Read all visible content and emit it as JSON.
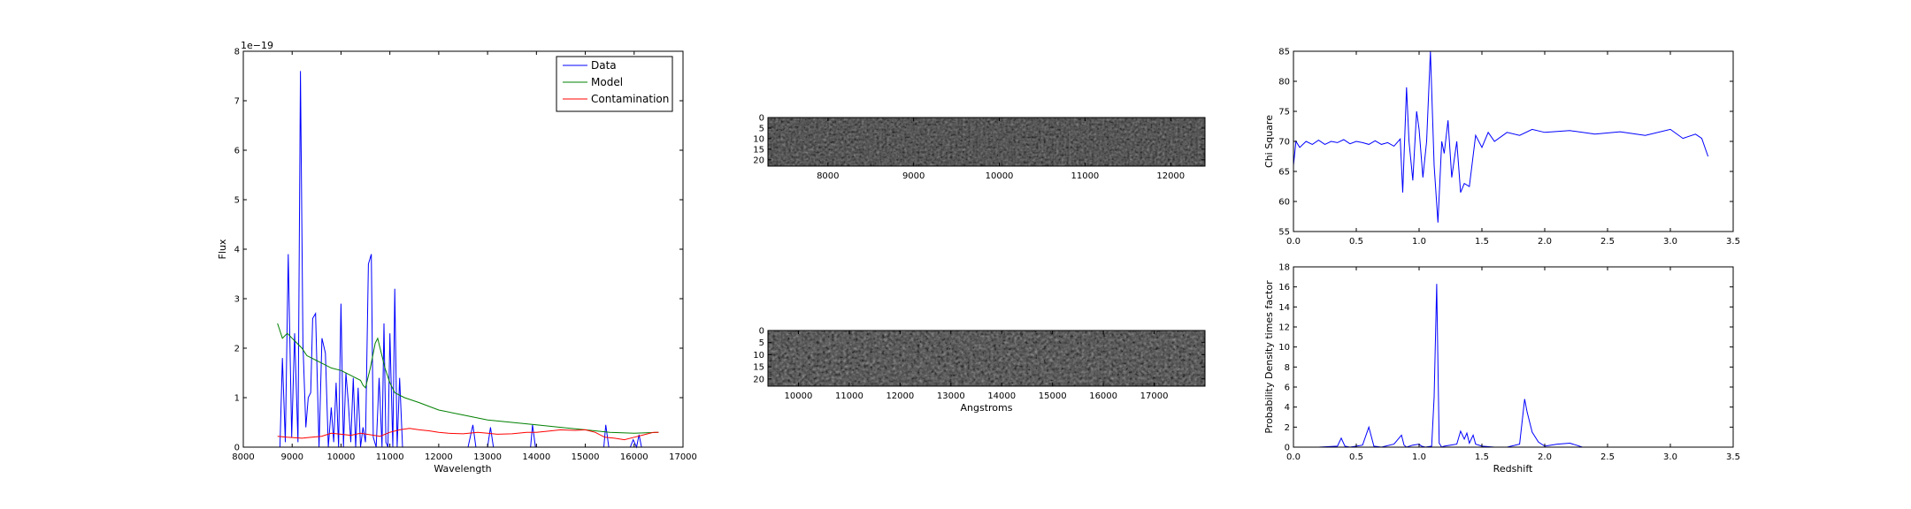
{
  "chart_data": [
    {
      "type": "line",
      "xlabel": "Wavelength",
      "ylabel": "Flux",
      "offset_label": "1e−19",
      "xlim": [
        8000,
        17000
      ],
      "ylim": [
        0,
        8
      ],
      "xticks": [
        8000,
        9000,
        10000,
        11000,
        12000,
        13000,
        14000,
        15000,
        16000,
        17000
      ],
      "yticks": [
        0,
        1,
        2,
        3,
        4,
        5,
        6,
        7,
        8
      ],
      "legend_position": "top-right",
      "series": [
        {
          "name": "Data",
          "color": "#0000ff",
          "x": [
            8750,
            8800,
            8860,
            8920,
            8990,
            9050,
            9120,
            9170,
            9220,
            9280,
            9330,
            9380,
            9420,
            9480,
            9550,
            9610,
            9680,
            9740,
            9800,
            9850,
            9900,
            9950,
            10000,
            10050,
            10100,
            10150,
            10200,
            10250,
            10300,
            10350,
            10400,
            10450,
            10500,
            10560,
            10620,
            10660,
            10720,
            10780,
            10840,
            10880,
            10920,
            10960,
            11000,
            11060,
            11100,
            11150,
            11200,
            11260,
            11320,
            11380,
            11440,
            11500,
            11600,
            11800,
            12000,
            12200,
            12400,
            12600,
            12700,
            12760,
            12820,
            12900,
            13000,
            13060,
            13120,
            13300,
            13500,
            13700,
            13800,
            13880,
            13920,
            13980,
            14100,
            14300,
            14500,
            14700,
            14900,
            15100,
            15300,
            15380,
            15420,
            15480,
            15600,
            15800,
            15920,
            15980,
            16050,
            16100,
            16150,
            16200,
            16300,
            16400,
            16500
          ],
          "values": [
            0.0,
            1.8,
            0.1,
            3.9,
            0.2,
            2.3,
            0.1,
            7.6,
            2.1,
            0.4,
            1.0,
            1.1,
            2.6,
            2.7,
            0.0,
            2.2,
            1.9,
            0.0,
            0.8,
            0.1,
            1.3,
            0.0,
            2.9,
            0.0,
            1.5,
            0.9,
            0.1,
            1.4,
            0.0,
            1.2,
            0.0,
            0.4,
            0.1,
            3.7,
            3.9,
            0.2,
            0.0,
            1.4,
            0.0,
            2.5,
            0.1,
            0.0,
            2.3,
            0.0,
            3.2,
            0.0,
            1.4,
            0.0,
            0.0,
            0.0,
            0.0,
            0.0,
            0.0,
            0.0,
            0.0,
            0.0,
            0.0,
            0.0,
            0.45,
            0.0,
            0.0,
            0.0,
            0.0,
            0.4,
            0.0,
            0.0,
            0.0,
            0.0,
            0.0,
            0.0,
            0.45,
            0.0,
            0.0,
            0.0,
            0.0,
            0.0,
            0.0,
            0.0,
            0.0,
            0.0,
            0.45,
            0.0,
            0.0,
            0.0,
            0.0,
            0.15,
            0.0,
            0.25,
            0.0,
            0.0,
            0.0,
            0.0,
            0.0
          ]
        },
        {
          "name": "Model",
          "color": "#008000",
          "x": [
            8700,
            8800,
            8900,
            9000,
            9100,
            9200,
            9300,
            9400,
            9500,
            9600,
            9800,
            10000,
            10200,
            10400,
            10450,
            10500,
            10600,
            10700,
            10750,
            10800,
            10900,
            11000,
            11100,
            11300,
            11600,
            12000,
            12500,
            13000,
            13500,
            14000,
            14500,
            15000,
            15500,
            16000,
            16500
          ],
          "values": [
            2.5,
            2.2,
            2.3,
            2.2,
            2.1,
            2.0,
            1.85,
            1.8,
            1.75,
            1.7,
            1.6,
            1.55,
            1.45,
            1.35,
            1.25,
            1.2,
            1.6,
            2.1,
            2.2,
            2.0,
            1.6,
            1.3,
            1.1,
            1.0,
            0.9,
            0.75,
            0.65,
            0.55,
            0.5,
            0.45,
            0.4,
            0.35,
            0.3,
            0.28,
            0.3
          ]
        },
        {
          "name": "Contamination",
          "color": "#ff0000",
          "x": [
            8700,
            8900,
            9200,
            9400,
            9600,
            9800,
            10000,
            10200,
            10400,
            10600,
            10800,
            11000,
            11200,
            11400,
            11600,
            11800,
            12000,
            12200,
            12500,
            12800,
            13000,
            13200,
            13500,
            13800,
            14000,
            14200,
            14500,
            14800,
            15000,
            15200,
            15400,
            15600,
            15800,
            16000,
            16200,
            16400,
            16500
          ],
          "values": [
            0.22,
            0.2,
            0.18,
            0.2,
            0.22,
            0.28,
            0.26,
            0.24,
            0.28,
            0.25,
            0.22,
            0.3,
            0.35,
            0.38,
            0.35,
            0.33,
            0.3,
            0.28,
            0.27,
            0.3,
            0.28,
            0.26,
            0.27,
            0.3,
            0.3,
            0.32,
            0.35,
            0.34,
            0.35,
            0.3,
            0.2,
            0.18,
            0.15,
            0.2,
            0.25,
            0.3,
            0.3
          ]
        }
      ]
    },
    {
      "type": "heatmap",
      "yticks": [
        0,
        5,
        10,
        15,
        20
      ],
      "xticks": [
        8000,
        9000,
        10000,
        11000,
        12000
      ],
      "xlim": [
        7300,
        12400
      ],
      "ylim": [
        0,
        23
      ],
      "colormap": "gray"
    },
    {
      "type": "heatmap",
      "xlabel": "Angstroms",
      "yticks": [
        0,
        5,
        10,
        15,
        20
      ],
      "xticks": [
        10000,
        11000,
        12000,
        13000,
        14000,
        15000,
        16000,
        17000
      ],
      "xlim": [
        9400,
        18000
      ],
      "ylim": [
        0,
        23
      ],
      "colormap": "gray"
    },
    {
      "type": "line",
      "ylabel": "Chi Square",
      "xlim": [
        0.0,
        3.5
      ],
      "ylim": [
        55,
        85
      ],
      "xticks": [
        "0.0",
        "0.5",
        "1.0",
        "1.5",
        "2.0",
        "2.5",
        "3.0",
        "3.5"
      ],
      "yticks": [
        55,
        60,
        65,
        70,
        75,
        80,
        85
      ],
      "series": [
        {
          "color": "#0000ff",
          "x": [
            0.0,
            0.02,
            0.05,
            0.1,
            0.15,
            0.2,
            0.25,
            0.3,
            0.35,
            0.4,
            0.45,
            0.5,
            0.55,
            0.6,
            0.65,
            0.7,
            0.75,
            0.8,
            0.85,
            0.87,
            0.9,
            0.92,
            0.95,
            0.98,
            1.0,
            1.03,
            1.06,
            1.09,
            1.12,
            1.15,
            1.18,
            1.2,
            1.23,
            1.26,
            1.3,
            1.33,
            1.36,
            1.4,
            1.45,
            1.5,
            1.55,
            1.6,
            1.7,
            1.8,
            1.9,
            2.0,
            2.2,
            2.4,
            2.6,
            2.8,
            3.0,
            3.1,
            3.2,
            3.25,
            3.3
          ],
          "values": [
            66,
            70,
            69,
            70,
            69.5,
            70.2,
            69.5,
            70,
            69.8,
            70.3,
            69.6,
            70,
            69.8,
            69.5,
            70.1,
            69.5,
            69.8,
            69.2,
            70.4,
            61.5,
            79,
            70,
            63.5,
            75,
            72,
            64,
            70,
            85,
            66,
            56.5,
            70,
            68,
            73.5,
            64,
            70,
            61.5,
            63,
            62.5,
            71,
            69,
            71.5,
            70,
            71.5,
            71,
            72,
            71.5,
            71.8,
            71.2,
            71.6,
            71,
            72,
            70.5,
            71.2,
            70.5,
            67.5
          ]
        }
      ]
    },
    {
      "type": "line",
      "xlabel": "Redshift",
      "ylabel": "Probability Density times factor",
      "xlim": [
        0.0,
        3.5
      ],
      "ylim": [
        0,
        18
      ],
      "xticks": [
        "0.0",
        "0.5",
        "1.0",
        "1.5",
        "2.0",
        "2.5",
        "3.0",
        "3.5"
      ],
      "yticks": [
        0,
        2,
        4,
        6,
        8,
        10,
        12,
        14,
        16,
        18
      ],
      "series": [
        {
          "color": "#0000ff",
          "x": [
            0.0,
            0.2,
            0.35,
            0.38,
            0.41,
            0.45,
            0.55,
            0.6,
            0.64,
            0.7,
            0.8,
            0.86,
            0.88,
            0.9,
            0.95,
            1.0,
            1.02,
            1.05,
            1.1,
            1.12,
            1.14,
            1.16,
            1.18,
            1.2,
            1.25,
            1.3,
            1.33,
            1.36,
            1.38,
            1.4,
            1.43,
            1.45,
            1.5,
            1.6,
            1.7,
            1.8,
            1.84,
            1.86,
            1.9,
            1.95,
            2.0,
            2.1,
            2.2,
            2.25,
            2.3,
            3.3
          ],
          "values": [
            0.0,
            0.0,
            0.1,
            0.9,
            0.1,
            0.0,
            0.2,
            2.0,
            0.1,
            0.0,
            0.3,
            1.2,
            0.2,
            0.0,
            0.2,
            0.3,
            0.1,
            0.0,
            0.1,
            5.0,
            16.3,
            0.4,
            0.0,
            0.1,
            0.2,
            0.3,
            1.6,
            0.8,
            1.4,
            0.4,
            1.2,
            0.3,
            0.1,
            0.0,
            0.0,
            0.3,
            4.8,
            3.5,
            1.5,
            0.5,
            0.1,
            0.3,
            0.4,
            0.2,
            0.0,
            0.0
          ]
        }
      ]
    }
  ]
}
